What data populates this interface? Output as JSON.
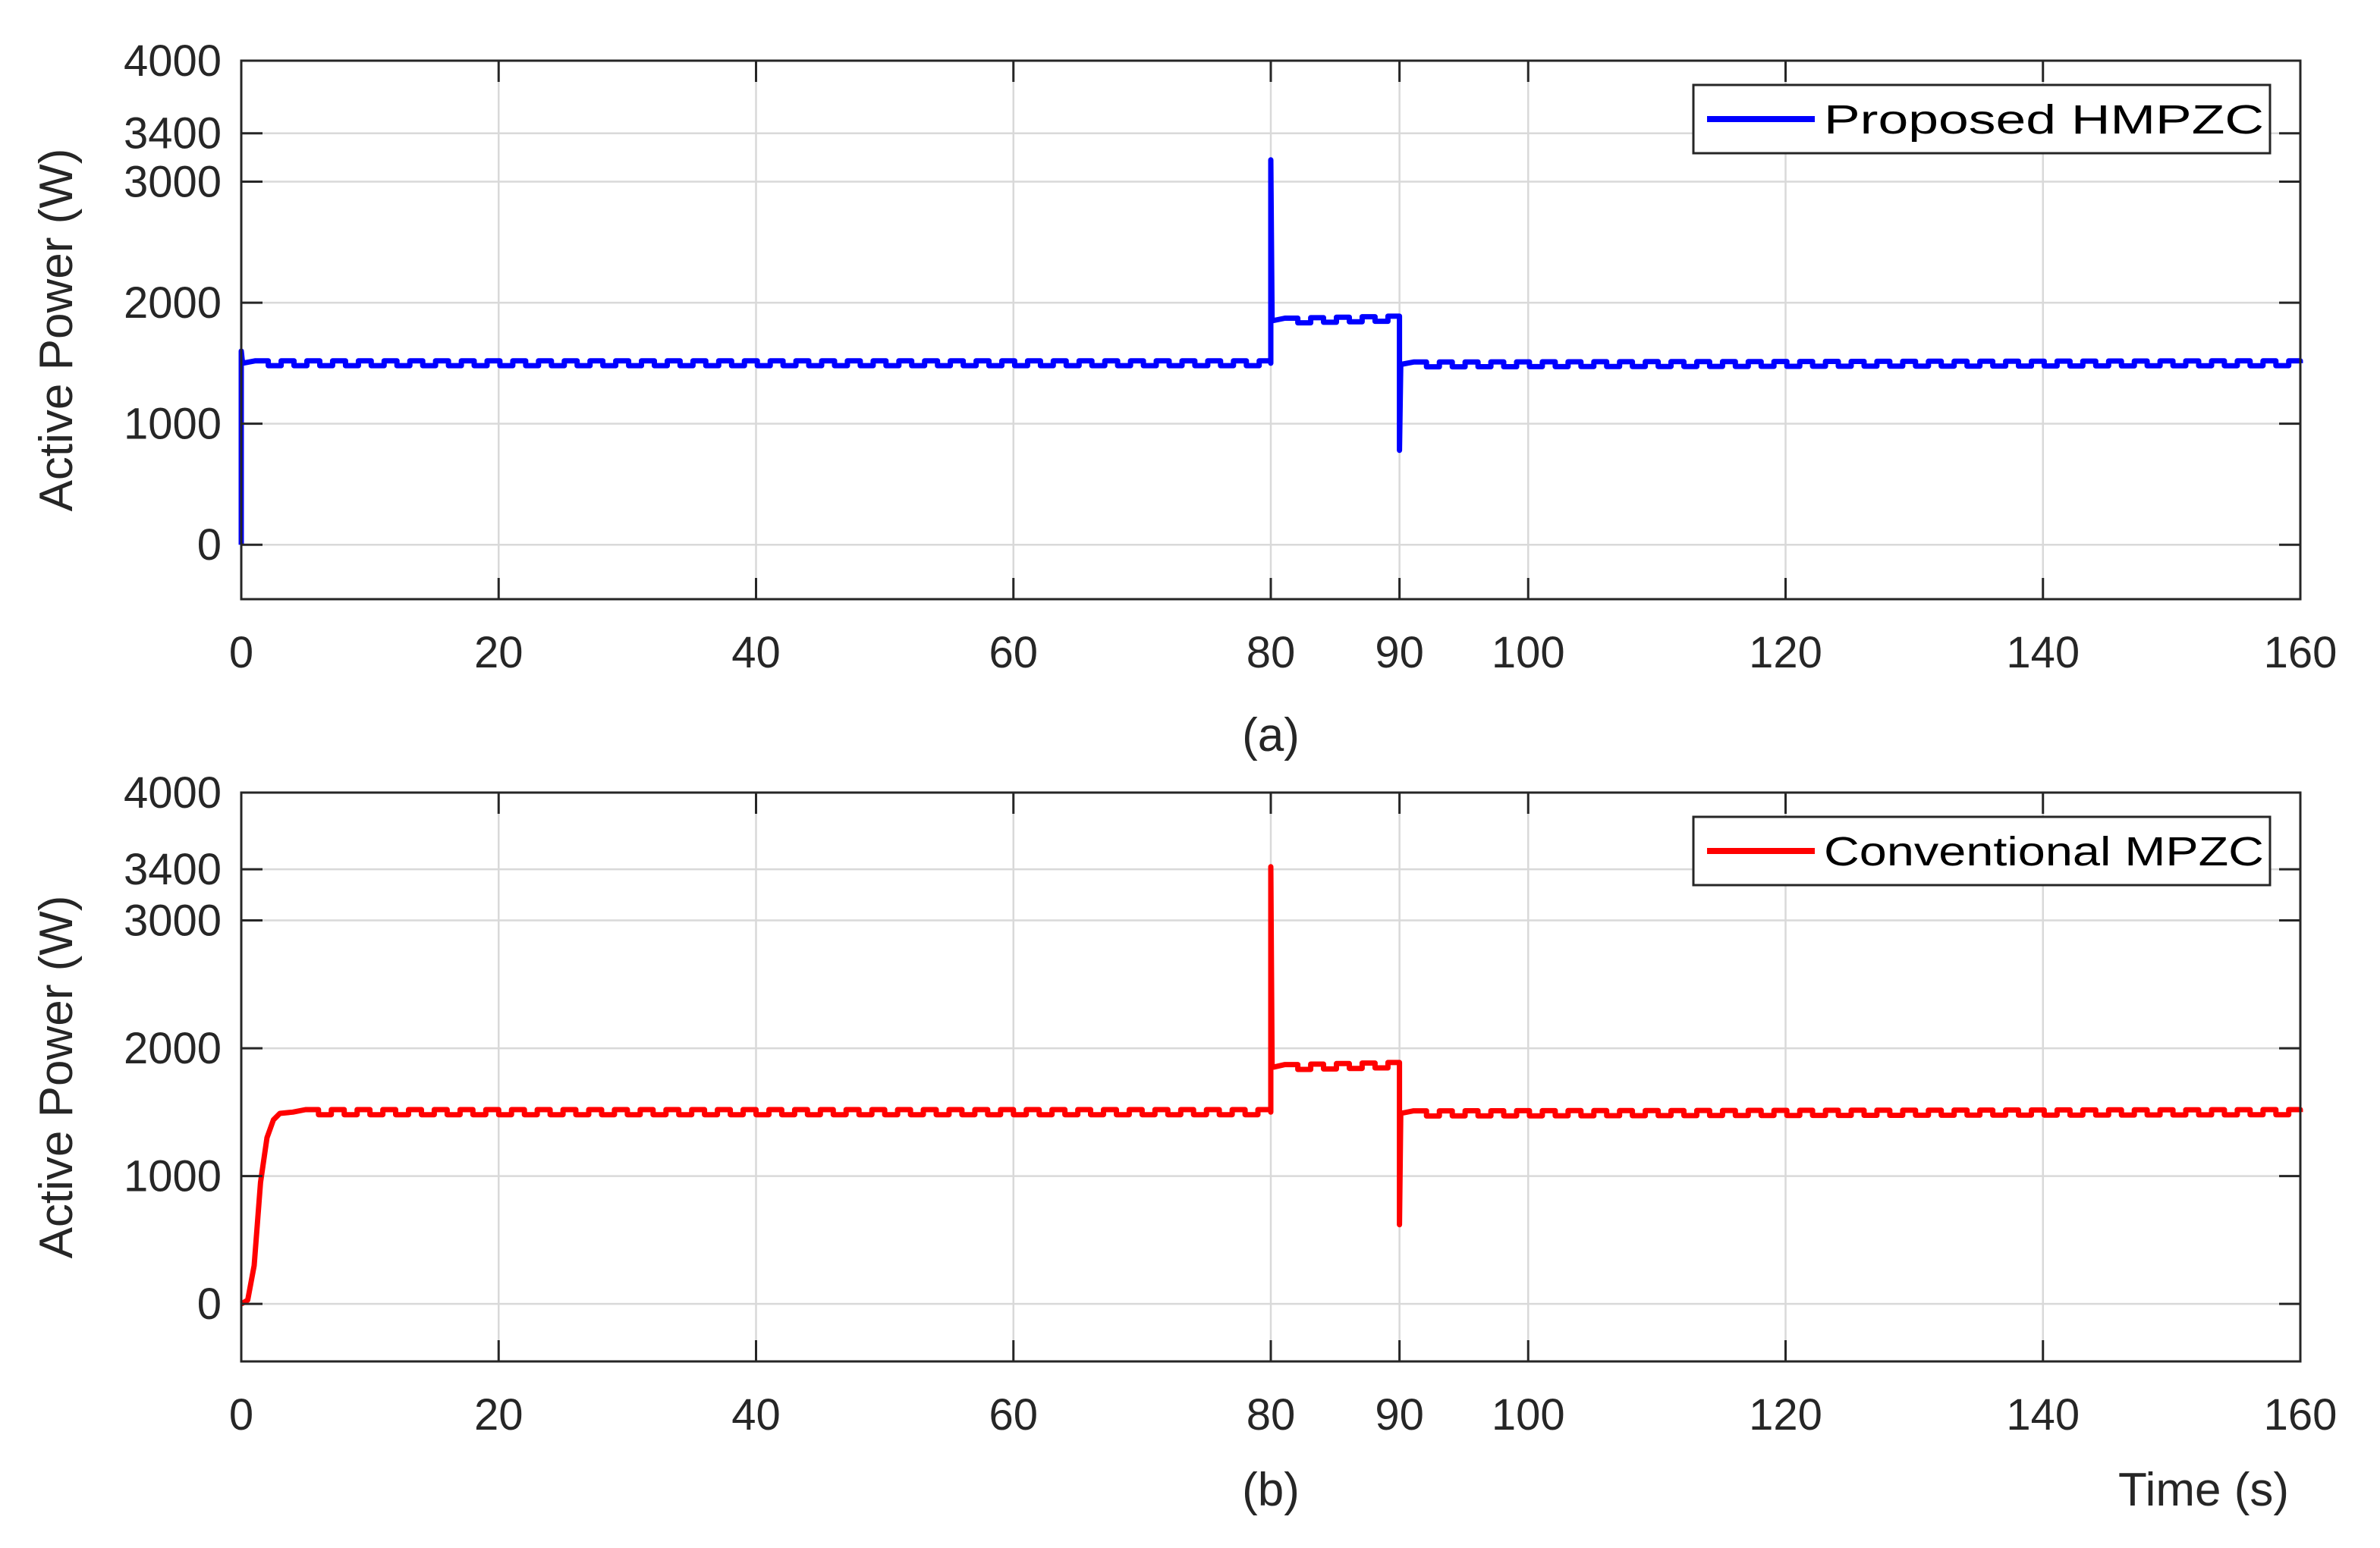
{
  "chart_data": [
    {
      "type": "line",
      "caption": "(a)",
      "xlabel": "",
      "ylabel": "Active Power (W)",
      "xlim": [
        0,
        160
      ],
      "ylim": [
        -450,
        4000
      ],
      "xticks": [
        0,
        20,
        40,
        60,
        80,
        90,
        100,
        120,
        140,
        160
      ],
      "yticks": [
        0,
        1000,
        2000,
        3000,
        3400,
        4000
      ],
      "grid": true,
      "legend_position": "top-right",
      "series": [
        {
          "name": "Proposed HMPZC",
          "color": "#0000ff",
          "ripple_amplitude": 20,
          "ripple_period": 2,
          "points": [
            [
              0,
              0
            ],
            [
              0,
              1600
            ],
            [
              0.1,
              1500
            ],
            [
              80,
              1500
            ],
            [
              80,
              3180
            ],
            [
              80.1,
              1850
            ],
            [
              90,
              1870
            ],
            [
              90,
              780
            ],
            [
              90.1,
              1490
            ],
            [
              160,
              1500
            ]
          ]
        }
      ]
    },
    {
      "type": "line",
      "caption": "(b)",
      "xlabel": "Time (s)",
      "ylabel": "Active Power (W)",
      "xlim": [
        0,
        160
      ],
      "ylim": [
        -450,
        4000
      ],
      "xticks": [
        0,
        20,
        40,
        60,
        80,
        90,
        100,
        120,
        140,
        160
      ],
      "yticks": [
        0,
        1000,
        2000,
        3000,
        3400,
        4000
      ],
      "grid": true,
      "legend_position": "top-right",
      "series": [
        {
          "name": "Conventional MPZC",
          "color": "#ff0000",
          "ripple_amplitude": 20,
          "ripple_period": 2,
          "points": [
            [
              0,
              0
            ],
            [
              0.5,
              30
            ],
            [
              1,
              300
            ],
            [
              1.5,
              950
            ],
            [
              2,
              1300
            ],
            [
              2.5,
              1440
            ],
            [
              3,
              1490
            ],
            [
              4,
              1500
            ],
            [
              80,
              1500
            ],
            [
              80,
              3420
            ],
            [
              80.1,
              1850
            ],
            [
              90,
              1870
            ],
            [
              90,
              620
            ],
            [
              90.1,
              1490
            ],
            [
              160,
              1500
            ]
          ]
        }
      ]
    }
  ]
}
